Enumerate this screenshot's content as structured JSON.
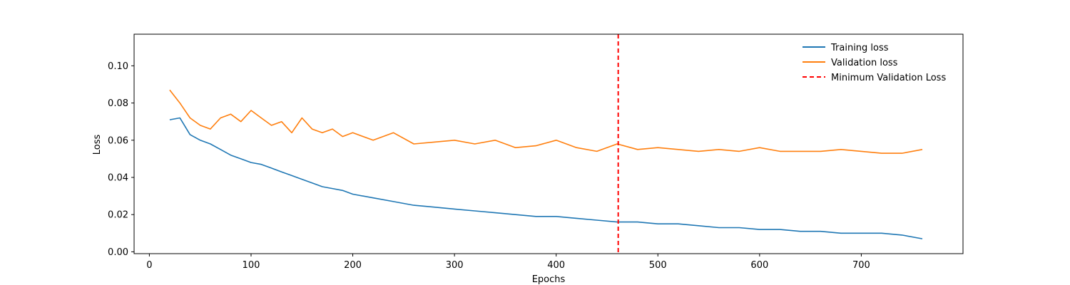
{
  "chart_data": {
    "type": "line",
    "title": "",
    "xlabel": "Epochs",
    "ylabel": "Loss",
    "xlim": [
      -15,
      800
    ],
    "ylim": [
      -0.001,
      0.117
    ],
    "xticks": [
      0,
      100,
      200,
      300,
      400,
      500,
      600,
      700
    ],
    "yticks": [
      0.0,
      0.02,
      0.04,
      0.06,
      0.08,
      0.1
    ],
    "ytick_labels": [
      "0.00",
      "0.02",
      "0.04",
      "0.06",
      "0.08",
      "0.10"
    ],
    "grid": false,
    "legend_position": "top-right",
    "series": [
      {
        "name": "Training loss",
        "color": "#1f77b4",
        "x": [
          20,
          30,
          40,
          50,
          60,
          70,
          80,
          90,
          100,
          110,
          120,
          130,
          140,
          150,
          160,
          170,
          180,
          190,
          200,
          220,
          240,
          260,
          280,
          300,
          320,
          340,
          360,
          380,
          400,
          420,
          440,
          460,
          480,
          500,
          520,
          540,
          560,
          580,
          600,
          620,
          640,
          660,
          680,
          700,
          720,
          740,
          760
        ],
        "y": [
          0.071,
          0.072,
          0.063,
          0.06,
          0.058,
          0.055,
          0.052,
          0.05,
          0.048,
          0.047,
          0.045,
          0.043,
          0.041,
          0.039,
          0.037,
          0.035,
          0.034,
          0.033,
          0.031,
          0.029,
          0.027,
          0.025,
          0.024,
          0.023,
          0.022,
          0.021,
          0.02,
          0.019,
          0.019,
          0.018,
          0.017,
          0.016,
          0.016,
          0.015,
          0.015,
          0.014,
          0.013,
          0.013,
          0.012,
          0.012,
          0.011,
          0.011,
          0.01,
          0.01,
          0.01,
          0.009,
          0.007
        ]
      },
      {
        "name": "Validation loss",
        "color": "#ff7f0e",
        "x": [
          20,
          30,
          40,
          50,
          60,
          70,
          80,
          90,
          100,
          110,
          120,
          130,
          140,
          150,
          160,
          170,
          180,
          190,
          200,
          220,
          240,
          260,
          280,
          300,
          320,
          340,
          360,
          380,
          400,
          420,
          440,
          460,
          480,
          500,
          520,
          540,
          560,
          580,
          600,
          620,
          640,
          660,
          680,
          700,
          720,
          740,
          760
        ],
        "y": [
          0.087,
          0.08,
          0.072,
          0.068,
          0.066,
          0.072,
          0.074,
          0.07,
          0.076,
          0.072,
          0.068,
          0.07,
          0.064,
          0.072,
          0.066,
          0.064,
          0.066,
          0.062,
          0.064,
          0.06,
          0.064,
          0.058,
          0.059,
          0.06,
          0.058,
          0.06,
          0.056,
          0.057,
          0.06,
          0.056,
          0.054,
          0.058,
          0.055,
          0.056,
          0.055,
          0.054,
          0.055,
          0.054,
          0.056,
          0.054,
          0.054,
          0.054,
          0.055,
          0.054,
          0.053,
          0.053,
          0.055
        ]
      },
      {
        "name": "Minimum Validation Loss",
        "type": "vline",
        "color": "#ff0000",
        "x": 461
      }
    ]
  }
}
